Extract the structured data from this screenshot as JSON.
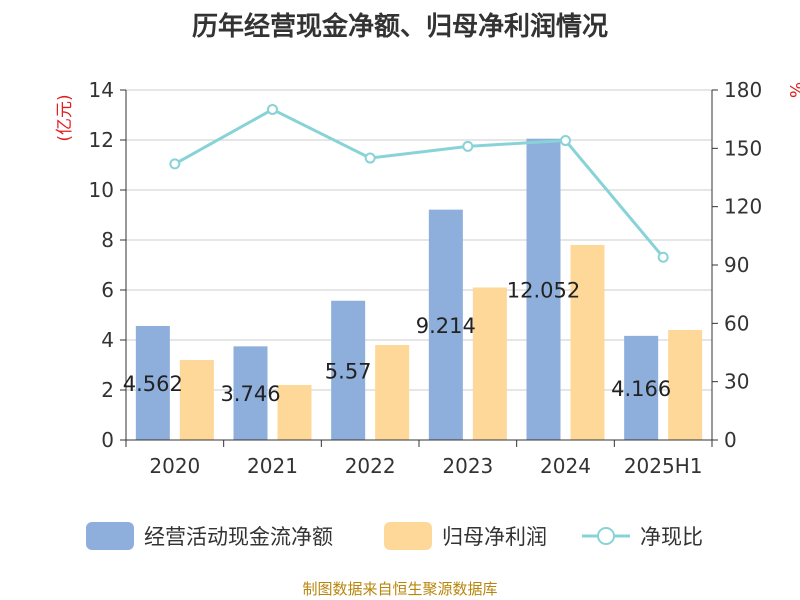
{
  "title": "历年经营现金净额、归母净利润情况",
  "source": "制图数据来自恒生聚源数据库",
  "colors": {
    "cash_flow": "#8eaedb",
    "net_profit": "#fdd898",
    "ratio": "#88d3d7",
    "axis": "#333333",
    "grid": "#cccccc",
    "unit": "#e02020"
  },
  "chart_data": {
    "type": "bar",
    "title": "历年经营现金净额、归母净利润情况",
    "categories": [
      "2020",
      "2021",
      "2022",
      "2023",
      "2024",
      "2025H1"
    ],
    "y_left": {
      "label": "(亿元)",
      "ticks": [
        "0",
        "2",
        "4",
        "6",
        "8",
        "10",
        "12",
        "14"
      ],
      "ylim": [
        0,
        14
      ]
    },
    "y_right": {
      "label": "%",
      "ticks": [
        "0",
        "30",
        "60",
        "90",
        "120",
        "150",
        "180"
      ],
      "ylim": [
        0,
        180
      ]
    },
    "grid": true,
    "legend_position": "bottom",
    "series": [
      {
        "name": "经营活动现金流净额",
        "type": "bar",
        "axis": "left",
        "values": [
          4.562,
          3.746,
          5.57,
          9.214,
          12.052,
          4.166
        ],
        "labels": [
          "4.562",
          "3.746",
          "5.57",
          "9.214",
          "12.052",
          "4.166"
        ]
      },
      {
        "name": "归母净利润",
        "type": "bar",
        "axis": "left",
        "values": [
          3.2,
          2.2,
          3.8,
          6.1,
          7.8,
          4.4
        ]
      },
      {
        "name": "净现比",
        "type": "line",
        "axis": "right",
        "values": [
          142,
          170,
          145,
          151,
          154,
          94
        ]
      }
    ]
  }
}
